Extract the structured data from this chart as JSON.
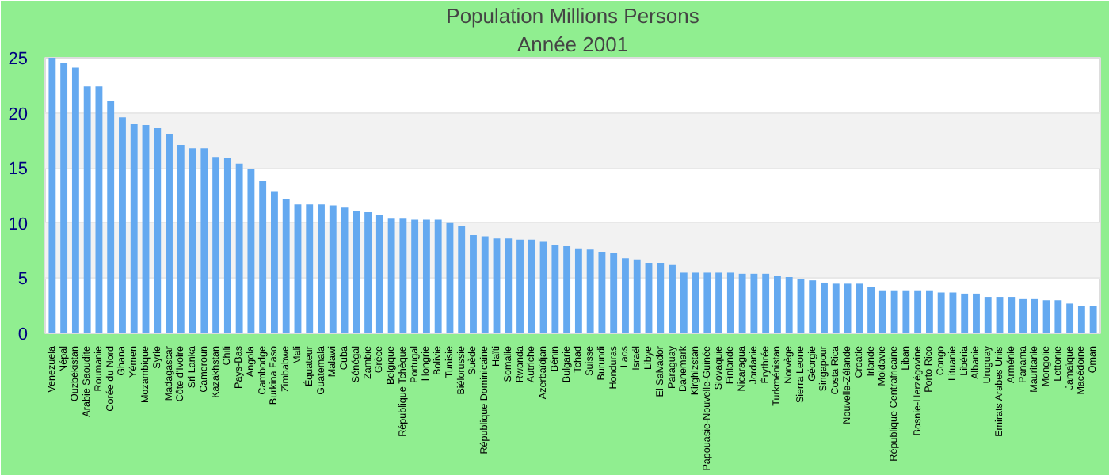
{
  "chart_data": {
    "type": "bar",
    "title": "Population Millions Persons",
    "subtitle": "Année 2001",
    "categories": [
      "Venezuela",
      "Népal",
      "Ouzbékistan",
      "Arabie Saoudite",
      "Roumanie",
      "Corée du Nord",
      "Ghana",
      "Yémen",
      "Mozambique",
      "Syrie",
      "Madagascar",
      "Côte d'Ivoire",
      "Sri Lanka",
      "Cameroun",
      "Kazakhstan",
      "Chili",
      "Pays-Bas",
      "Angola",
      "Cambodge",
      "Burkina Faso",
      "Zimbabwe",
      "Mali",
      "Équateur",
      "Guatemala",
      "Malawi",
      "Cuba",
      "Sénégal",
      "Zambie",
      "Grèce",
      "Belgique",
      "République Tchèque",
      "Portugal",
      "Hongrie",
      "Bolivie",
      "Tunisie",
      "Biélorussie",
      "Suède",
      "République Dominicaine",
      "Haïti",
      "Somalie",
      "Rwanda",
      "Autriche",
      "Azerbaïdjan",
      "Bénin",
      "Bulgarie",
      "Tchad",
      "Suisse",
      "Burundi",
      "Honduras",
      "Laos",
      "Israël",
      "Libye",
      "El Salvador",
      "Paraguay",
      "Danemark",
      "Kirghizstan",
      "Papouasie-Nouvelle-Guinée",
      "Slovaquie",
      "Finlande",
      "Nicaragua",
      "Jordanie",
      "Érythrée",
      "Turkménistan",
      "Norvège",
      "Sierra Leone",
      "Géorgie",
      "Singapour",
      "Costa Rica",
      "Nouvelle-Zélande",
      "Croatie",
      "Irlande",
      "Moldavie",
      "République Centrafricaine",
      "Liban",
      "Bosnie-Herzégovine",
      "Porto Rico",
      "Congo",
      "Lituanie",
      "Libéria",
      "Albanie",
      "Uruguay",
      "Emirats Arabes Unis",
      "Arménie",
      "Panama",
      "Mauritanie",
      "Mongolie",
      "Lettonie",
      "Jamaïque",
      "Macédoine",
      "Oman"
    ],
    "values": [
      25.0,
      24.5,
      24.1,
      22.4,
      22.4,
      21.1,
      19.6,
      19.0,
      18.9,
      18.6,
      18.1,
      17.1,
      16.8,
      16.8,
      16.0,
      15.9,
      15.4,
      14.9,
      13.8,
      12.9,
      12.2,
      11.7,
      11.7,
      11.7,
      11.6,
      11.4,
      11.1,
      11.0,
      10.7,
      10.4,
      10.4,
      10.3,
      10.3,
      10.3,
      10.0,
      9.7,
      8.9,
      8.8,
      8.6,
      8.6,
      8.5,
      8.5,
      8.3,
      8.0,
      7.9,
      7.7,
      7.6,
      7.4,
      7.3,
      6.8,
      6.7,
      6.4,
      6.4,
      6.2,
      5.5,
      5.5,
      5.5,
      5.5,
      5.5,
      5.4,
      5.4,
      5.4,
      5.2,
      5.1,
      4.9,
      4.8,
      4.6,
      4.5,
      4.5,
      4.5,
      4.2,
      3.9,
      3.9,
      3.9,
      3.9,
      3.9,
      3.7,
      3.7,
      3.6,
      3.6,
      3.3,
      3.3,
      3.3,
      3.1,
      3.1,
      3.0,
      3.0,
      2.7,
      2.5,
      2.5
    ],
    "color": "#64a9f0",
    "ylim": [
      0,
      25
    ],
    "yticks": [
      0,
      5,
      10,
      15,
      20,
      25
    ],
    "grid": "y"
  }
}
